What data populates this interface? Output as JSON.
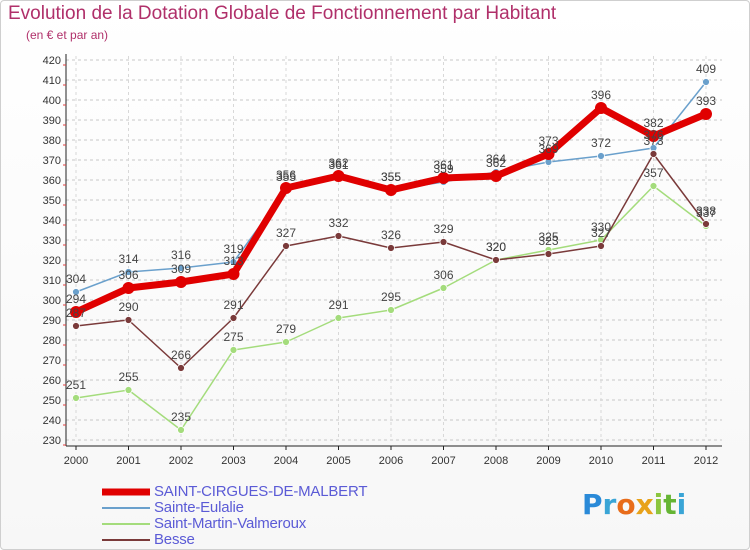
{
  "title": "Evolution de la Dotation Globale de Fonctionnement par Habitant",
  "subtitle": "(en € et par an)",
  "logo_text": "Proxiti",
  "colors": {
    "saint_cirgues": "#e00000",
    "sainte_eulalie": "#6aa0cc",
    "saint_martin": "#a4dc7c",
    "besse": "#7a3a3a",
    "title": "#b0306a",
    "legend_text": "#5b5bd6"
  },
  "chart_data": {
    "type": "line",
    "title": "Evolution de la Dotation Globale de Fonctionnement par Habitant",
    "subtitle": "(en € et par an)",
    "xlabel": "",
    "ylabel": "",
    "x": [
      "2000",
      "2001",
      "2002",
      "2003",
      "2004",
      "2005",
      "2006",
      "2007",
      "2008",
      "2009",
      "2010",
      "2011",
      "2012"
    ],
    "ylim": [
      230,
      420
    ],
    "yticks": [
      230,
      240,
      250,
      260,
      270,
      280,
      290,
      300,
      310,
      320,
      330,
      340,
      350,
      360,
      370,
      380,
      390,
      400,
      410,
      420
    ],
    "grid": "horizontal dashed",
    "legend_position": "bottom-left",
    "series": [
      {
        "name": "SAINT-CIRGUES-DE-MALBERT",
        "key": "saint_cirgues",
        "values": [
          294,
          306,
          309,
          313,
          356,
          362,
          355,
          361,
          362,
          373,
          396,
          382,
          393
        ],
        "labels": [
          "294",
          "306",
          "309",
          "313",
          "356",
          "362",
          "355",
          "361",
          "362",
          "373",
          "396",
          "382",
          "393"
        ]
      },
      {
        "name": "Sainte-Eulalie",
        "key": "sainte_eulalie",
        "values": [
          304,
          314,
          316,
          319,
          355,
          361,
          355,
          359,
          364,
          369,
          372,
          376,
          409
        ],
        "labels": [
          "304",
          "314",
          "316",
          "319",
          "355",
          "361",
          "355",
          "359",
          "364",
          "369",
          "372",
          "376",
          "409"
        ]
      },
      {
        "name": "Saint-Martin-Valmeroux",
        "key": "saint_martin",
        "values": [
          251,
          255,
          235,
          275,
          279,
          291,
          295,
          306,
          320,
          325,
          330,
          357,
          337
        ],
        "labels": [
          "251",
          "255",
          "235",
          "275",
          "279",
          "291",
          "295",
          "306",
          "320",
          "325",
          "330",
          "357",
          "337"
        ]
      },
      {
        "name": "Besse",
        "key": "besse",
        "values": [
          287,
          290,
          266,
          291,
          327,
          332,
          326,
          329,
          320,
          323,
          327,
          373,
          338
        ],
        "labels": [
          "287",
          "290",
          "266",
          "291",
          "327",
          "332",
          "326",
          "329",
          "320",
          "323",
          "327",
          "373",
          "338"
        ]
      }
    ]
  }
}
